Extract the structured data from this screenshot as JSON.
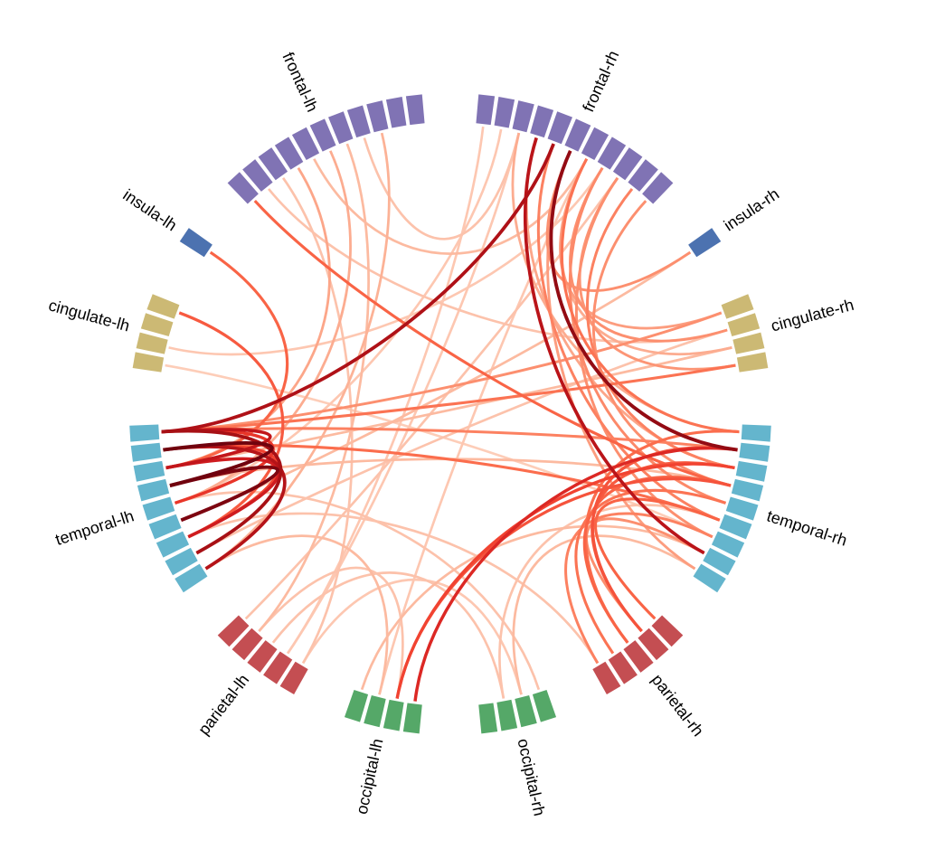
{
  "chart_data": {
    "type": "connectivity-circle",
    "node_groups": [
      {
        "label": "frontal-lh",
        "hemi": "lh",
        "count": 11,
        "color": "#8073b4"
      },
      {
        "label": "insula-lh",
        "hemi": "lh",
        "count": 1,
        "color": "#4c72b0"
      },
      {
        "label": "cingulate-lh",
        "hemi": "lh",
        "count": 4,
        "color": "#ccb974"
      },
      {
        "label": "temporal-lh",
        "hemi": "lh",
        "count": 9,
        "color": "#64b5cd"
      },
      {
        "label": "parietal-lh",
        "hemi": "lh",
        "count": 5,
        "color": "#c44e52"
      },
      {
        "label": "occipital-lh",
        "hemi": "lh",
        "count": 4,
        "color": "#55a868"
      },
      {
        "label": "frontal-rh",
        "hemi": "rh",
        "count": 11,
        "color": "#8073b4"
      },
      {
        "label": "insula-rh",
        "hemi": "rh",
        "count": 1,
        "color": "#4c72b0"
      },
      {
        "label": "cingulate-rh",
        "hemi": "rh",
        "count": 4,
        "color": "#ccb974"
      },
      {
        "label": "temporal-rh",
        "hemi": "rh",
        "count": 9,
        "color": "#64b5cd"
      },
      {
        "label": "parietal-rh",
        "hemi": "rh",
        "count": 5,
        "color": "#c44e52"
      },
      {
        "label": "occipital-rh",
        "hemi": "rh",
        "count": 4,
        "color": "#55a868"
      }
    ],
    "colormap": "Reds",
    "connections": [
      [
        17,
        19,
        0.98
      ],
      [
        19,
        21,
        0.95
      ],
      [
        16,
        23,
        0.85
      ],
      [
        17,
        24,
        0.8
      ],
      [
        16,
        18,
        0.75
      ],
      [
        18,
        22,
        0.7
      ],
      [
        16,
        20,
        0.6
      ],
      [
        17,
        22,
        0.55
      ],
      [
        16,
        38,
        0.82
      ],
      [
        39,
        51,
        0.9
      ],
      [
        37,
        57,
        0.78
      ],
      [
        33,
        51,
        0.65
      ],
      [
        32,
        52,
        0.55
      ],
      [
        32,
        53,
        0.5
      ],
      [
        11,
        18,
        0.45
      ],
      [
        12,
        22,
        0.48
      ],
      [
        10,
        53,
        0.45
      ],
      [
        16,
        49,
        0.4
      ],
      [
        17,
        55,
        0.42
      ],
      [
        16,
        51,
        0.35
      ],
      [
        16,
        46,
        0.3
      ],
      [
        60,
        51,
        0.5
      ],
      [
        60,
        52,
        0.48
      ],
      [
        61,
        53,
        0.45
      ],
      [
        62,
        54,
        0.4
      ],
      [
        59,
        55,
        0.45
      ],
      [
        61,
        50,
        0.42
      ],
      [
        63,
        56,
        0.35
      ],
      [
        60,
        57,
        0.3
      ],
      [
        45,
        39,
        0.3
      ],
      [
        46,
        40,
        0.25
      ],
      [
        47,
        41,
        0.3
      ],
      [
        49,
        42,
        0.28
      ],
      [
        43,
        52,
        0.35
      ],
      [
        44,
        53,
        0.3
      ],
      [
        41,
        54,
        0.32
      ],
      [
        40,
        50,
        0.4
      ],
      [
        38,
        55,
        0.35
      ],
      [
        42,
        56,
        0.3
      ],
      [
        36,
        50,
        0.2
      ],
      [
        37,
        52,
        0.22
      ],
      [
        39,
        58,
        0.25
      ],
      [
        40,
        48,
        0.2
      ],
      [
        7,
        18,
        0.22
      ],
      [
        5,
        20,
        0.2
      ],
      [
        4,
        26,
        0.15
      ],
      [
        8,
        29,
        0.12
      ],
      [
        3,
        36,
        0.12
      ],
      [
        6,
        40,
        0.15
      ],
      [
        2,
        24,
        0.18
      ],
      [
        34,
        28,
        0.1
      ],
      [
        35,
        20,
        0.1
      ],
      [
        21,
        45,
        0.15
      ],
      [
        23,
        47,
        0.12
      ],
      [
        18,
        48,
        0.15
      ],
      [
        20,
        64,
        0.12
      ],
      [
        24,
        31,
        0.15
      ],
      [
        27,
        66,
        0.12
      ],
      [
        29,
        65,
        0.1
      ],
      [
        26,
        32,
        0.12
      ],
      [
        30,
        57,
        0.15
      ],
      [
        31,
        40,
        0.1
      ],
      [
        14,
        41,
        0.1
      ],
      [
        15,
        56,
        0.08
      ],
      [
        25,
        42,
        0.12
      ],
      [
        28,
        36,
        0.1
      ],
      [
        22,
        63,
        0.12
      ],
      [
        19,
        53,
        0.15
      ],
      [
        9,
        47,
        0.12
      ],
      [
        65,
        58,
        0.15
      ],
      [
        66,
        55,
        0.12
      ]
    ]
  }
}
